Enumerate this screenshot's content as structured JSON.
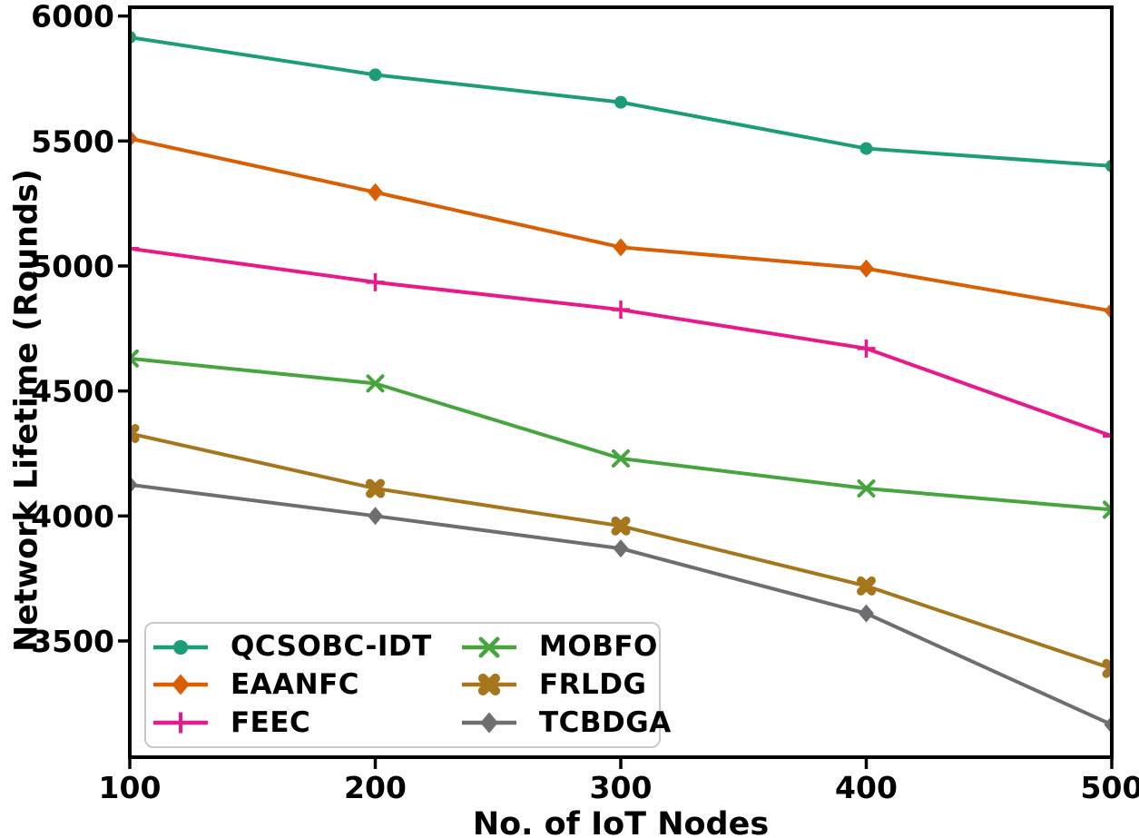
{
  "chart_data": {
    "type": "line",
    "title": "",
    "xlabel": "No. of IoT Nodes",
    "ylabel": "Network Lifetime (Rounds)",
    "x": [
      100,
      200,
      300,
      400,
      500
    ],
    "xticks": [
      100,
      200,
      300,
      400,
      500
    ],
    "yticks": [
      3500,
      4000,
      4500,
      5000,
      5500,
      6000
    ],
    "xlim": [
      100,
      500
    ],
    "ylim": [
      3035,
      6035
    ],
    "grid": false,
    "legend_position": "lower-left",
    "legend_columns": 2,
    "axis_color": "#000000",
    "series": [
      {
        "name": "QCSOBC-IDT",
        "color": "#1b9e77",
        "marker": "circle",
        "values": [
          5915,
          5765,
          5655,
          5470,
          5400
        ]
      },
      {
        "name": "EAANFC",
        "color": "#d95f02",
        "marker": "diamond",
        "values": [
          5510,
          5295,
          5075,
          4990,
          4820
        ]
      },
      {
        "name": "FEEC",
        "color": "#e81a8b",
        "marker": "plus",
        "values": [
          5070,
          4935,
          4825,
          4670,
          4320
        ]
      },
      {
        "name": "MOBFO",
        "color": "#46a53c",
        "marker": "x",
        "values": [
          4630,
          4530,
          4230,
          4110,
          4025
        ]
      },
      {
        "name": "FRLDG",
        "color": "#a6761d",
        "marker": "bold-x",
        "values": [
          4330,
          4110,
          3960,
          3720,
          3390
        ]
      },
      {
        "name": "TCBDGA",
        "color": "#6e6e6e",
        "marker": "diamond",
        "values": [
          4125,
          4000,
          3870,
          3610,
          3165
        ]
      }
    ]
  }
}
